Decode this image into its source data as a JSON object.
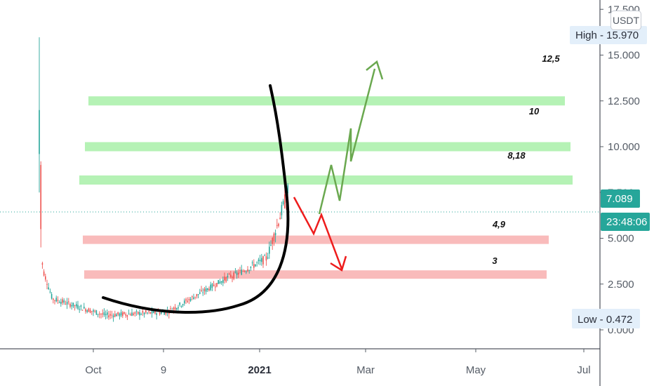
{
  "chart_data": {
    "type": "candlestick",
    "quote_currency": "USDT",
    "y_ticks": [
      "17.500",
      "15.000",
      "12.500",
      "10.000",
      "7.500",
      "5.000",
      "2.500",
      "0.000"
    ],
    "x_ticks": [
      "Oct",
      "9",
      "2021",
      "Mar",
      "May",
      "Jul"
    ],
    "x_ticks_bold": [
      "2021"
    ],
    "high_label": "High - 15.970",
    "low_label": "Low - 0.472",
    "last_price": "7.089",
    "countdown": "23:48:06",
    "resistance_zones": [
      {
        "label": "12,5",
        "value": 12.5
      },
      {
        "label": "10",
        "value": 10.0
      },
      {
        "label": "8,18",
        "value": 8.18
      }
    ],
    "support_zones": [
      {
        "label": "4,9",
        "value": 4.9
      },
      {
        "label": "3",
        "value": 3.0
      }
    ],
    "colors": {
      "up": "#26a69a",
      "down": "#ef5350",
      "resistance_zone": "#a8f0a8",
      "support_zone": "#f8b4b4",
      "bullish_arrow": "#6aa84f",
      "bearish_arrow": "#ee1c1c",
      "curve": "#000000",
      "last_price_badge": "#26a69a",
      "high_low_badge": "#e3effa"
    }
  }
}
